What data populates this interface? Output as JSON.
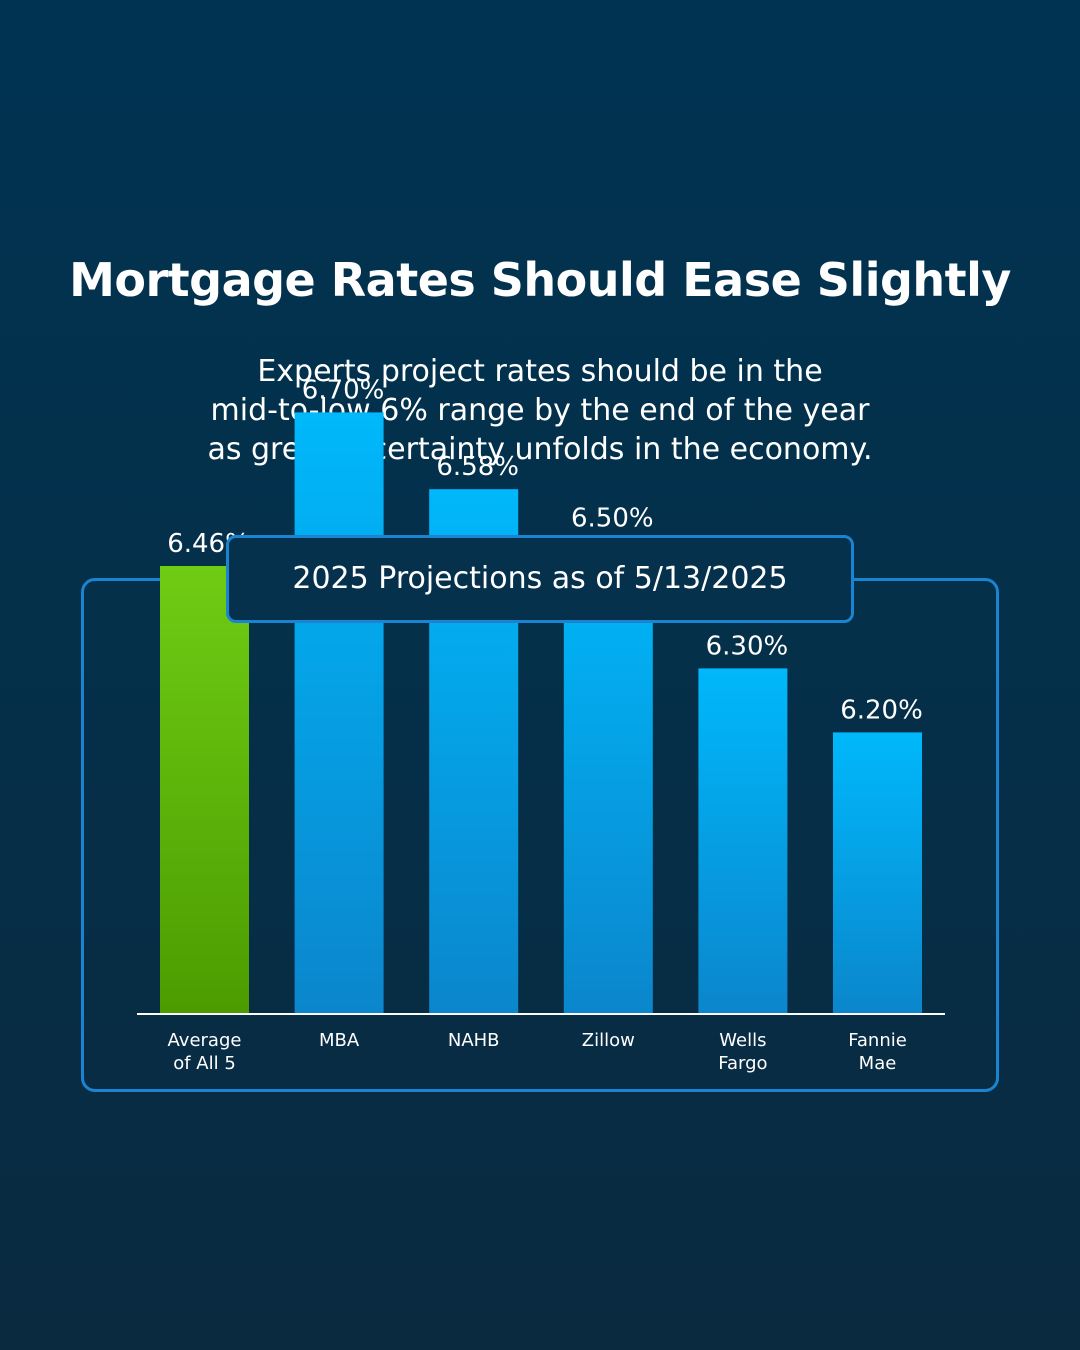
{
  "header": {
    "title": "Mortgage Rates Should Ease Slightly",
    "subtitle_lines": [
      "Experts project rates should be in the",
      "mid-to-low 6% range by the end of the year",
      "as greater certainty unfolds in the economy."
    ]
  },
  "chart_panel": {
    "label": "2025 Projections as of 5/13/2025"
  },
  "colors": {
    "accent_border": "#1a84d0",
    "average_bar_top": "#6fcc14",
    "average_bar_bottom": "#4c9c00",
    "bar_top": "#00b8fb",
    "bar_bottom": "#0b86cc",
    "baseline": "#ffffff"
  },
  "chart_data": {
    "type": "bar",
    "categories": [
      "Average of All 5",
      "MBA",
      "NAHB",
      "Zillow",
      "Wells Fargo",
      "Fannie Mae"
    ],
    "category_lines": [
      [
        "Average",
        "of All 5"
      ],
      [
        "MBA"
      ],
      [
        "NAHB"
      ],
      [
        "Zillow"
      ],
      [
        "Wells",
        "Fargo"
      ],
      [
        "Fannie",
        "Mae"
      ]
    ],
    "values": [
      6.46,
      6.7,
      6.58,
      6.5,
      6.3,
      6.2
    ],
    "value_labels": [
      "6.46%",
      "6.70%",
      "6.58%",
      "6.50%",
      "6.30%",
      "6.20%"
    ],
    "highlight_index": 0,
    "title": "2025 Projections as of 5/13/2025",
    "xlabel": "",
    "ylabel": "",
    "grid": false,
    "legend": "none"
  }
}
